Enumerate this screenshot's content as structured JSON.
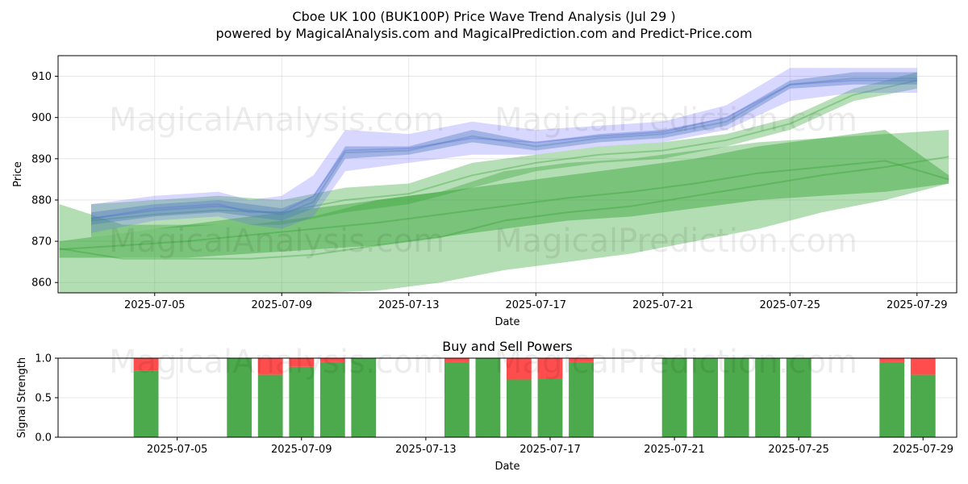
{
  "title_line1": "Cboe UK 100 (BUK100P) Price Wave Trend Analysis (Jul 29 )",
  "title_line2": "powered by MagicalAnalysis.com and MagicalPrediction.com and Predict-Price.com",
  "watermarks": [
    "MagicalAnalysis.com",
    "MagicalPrediction.com"
  ],
  "colors": {
    "green": "#2ca02c",
    "blue": "#6464ff",
    "buy": "#4caa4c",
    "sell": "#ff4d4d"
  },
  "chart_data": [
    {
      "type": "area",
      "title": "",
      "xlabel": "Date",
      "ylabel": "Price",
      "x_range": [
        "2025-07-01T23:00",
        "2025-07-30T06:00"
      ],
      "ylim": [
        857.5,
        915
      ],
      "x_ticks": [
        "2025-07-05",
        "2025-07-09",
        "2025-07-13",
        "2025-07-17",
        "2025-07-21",
        "2025-07-25",
        "2025-07-29"
      ],
      "y_ticks": [
        860,
        870,
        880,
        890,
        900,
        910
      ],
      "grid": true,
      "series": [
        {
          "color": "#2ca02c",
          "x": [
            "2025-07-02",
            "2025-07-04",
            "2025-07-06",
            "2025-07-08",
            "2025-07-10",
            "2025-07-12",
            "2025-07-14",
            "2025-07-16",
            "2025-07-18",
            "2025-07-20",
            "2025-07-22",
            "2025-07-24",
            "2025-07-26",
            "2025-07-28",
            "2025-07-30"
          ],
          "upper": [
            879,
            874,
            874,
            874,
            876,
            880,
            882,
            887,
            889,
            890,
            892,
            894,
            895,
            896,
            897
          ],
          "lower": [
            857.5,
            857.5,
            857.5,
            857.5,
            857.5,
            858,
            860,
            863,
            865,
            867,
            870,
            873,
            877,
            880,
            884
          ]
        },
        {
          "color": "#2ca02c",
          "x": [
            "2025-07-02",
            "2025-07-04",
            "2025-07-06",
            "2025-07-08",
            "2025-07-10",
            "2025-07-12",
            "2025-07-14",
            "2025-07-16",
            "2025-07-18",
            "2025-07-20",
            "2025-07-22",
            "2025-07-24",
            "2025-07-26",
            "2025-07-28",
            "2025-07-30"
          ],
          "upper": [
            870,
            872,
            874,
            876,
            878,
            880,
            882,
            884,
            886,
            888,
            890,
            893,
            895,
            897,
            886
          ],
          "lower": [
            866,
            866,
            866,
            867,
            868,
            869,
            871,
            873,
            875,
            876,
            878,
            880,
            881,
            882,
            884
          ]
        },
        {
          "color": "#2ca02c",
          "x": [
            "2025-07-03",
            "2025-07-05",
            "2025-07-07",
            "2025-07-09",
            "2025-07-11",
            "2025-07-13",
            "2025-07-15",
            "2025-07-17",
            "2025-07-19",
            "2025-07-21",
            "2025-07-23",
            "2025-07-25",
            "2025-07-27",
            "2025-07-29"
          ],
          "upper": [
            879,
            880,
            881,
            880,
            883,
            884,
            889,
            891,
            893,
            894,
            896,
            900,
            907,
            911
          ],
          "lower": [
            871,
            873,
            874,
            874,
            877,
            879,
            883,
            887,
            889,
            890,
            893,
            897,
            904,
            907
          ]
        },
        {
          "color": "#6464ff",
          "x": [
            "2025-07-03",
            "2025-07-05",
            "2025-07-07",
            "2025-07-08",
            "2025-07-09",
            "2025-07-10",
            "2025-07-11",
            "2025-07-13",
            "2025-07-15",
            "2025-07-17",
            "2025-07-19",
            "2025-07-21",
            "2025-07-23",
            "2025-07-25",
            "2025-07-27",
            "2025-07-29"
          ],
          "upper": [
            879,
            881,
            882,
            880,
            881,
            886,
            897,
            896,
            899,
            897,
            898,
            899,
            903,
            912,
            912,
            912
          ],
          "lower": [
            872,
            875,
            876,
            874,
            873,
            876,
            887,
            889,
            891,
            891,
            893,
            894,
            897,
            904,
            906,
            906
          ]
        },
        {
          "color": "#4a7ab8",
          "x": [
            "2025-07-03",
            "2025-07-05",
            "2025-07-07",
            "2025-07-08",
            "2025-07-09",
            "2025-07-10",
            "2025-07-11",
            "2025-07-13",
            "2025-07-15",
            "2025-07-17",
            "2025-07-19",
            "2025-07-21",
            "2025-07-23",
            "2025-07-25",
            "2025-07-27",
            "2025-07-29"
          ],
          "upper": [
            877,
            879,
            880,
            879,
            878,
            881,
            893,
            893,
            897,
            894,
            896,
            897,
            900,
            909,
            911,
            911
          ],
          "lower": [
            874,
            876,
            877,
            876,
            875,
            878,
            890,
            891,
            894,
            892,
            894,
            895,
            898,
            907,
            908,
            908
          ]
        }
      ]
    },
    {
      "type": "bar",
      "title": "Buy and Sell Powers",
      "xlabel": "Date",
      "ylabel": "Signal Strength",
      "ylim": [
        0,
        1
      ],
      "y_ticks": [
        "0.0",
        "0.5",
        "1.0"
      ],
      "x_ticks": [
        "2025-07-05",
        "2025-07-09",
        "2025-07-13",
        "2025-07-17",
        "2025-07-21",
        "2025-07-25",
        "2025-07-29"
      ],
      "grid": true,
      "series": [
        {
          "name": "Buy"
        },
        {
          "name": "Sell"
        }
      ],
      "x": [
        "2025-07-04",
        "2025-07-07",
        "2025-07-08",
        "2025-07-09",
        "2025-07-10",
        "2025-07-11",
        "2025-07-14",
        "2025-07-15",
        "2025-07-16",
        "2025-07-17",
        "2025-07-18",
        "2025-07-21",
        "2025-07-22",
        "2025-07-23",
        "2025-07-24",
        "2025-07-25",
        "2025-07-28",
        "2025-07-29"
      ],
      "buy": [
        0.84,
        1.0,
        0.79,
        0.89,
        0.95,
        1.0,
        0.95,
        1.0,
        0.73,
        0.74,
        0.95,
        1.0,
        1.0,
        1.0,
        1.0,
        1.0,
        0.95,
        0.79
      ],
      "sell": [
        0.16,
        0.0,
        0.21,
        0.11,
        0.05,
        0.0,
        0.05,
        0.0,
        0.27,
        0.26,
        0.05,
        0.0,
        0.0,
        0.0,
        0.0,
        0.0,
        0.05,
        0.21
      ]
    }
  ]
}
